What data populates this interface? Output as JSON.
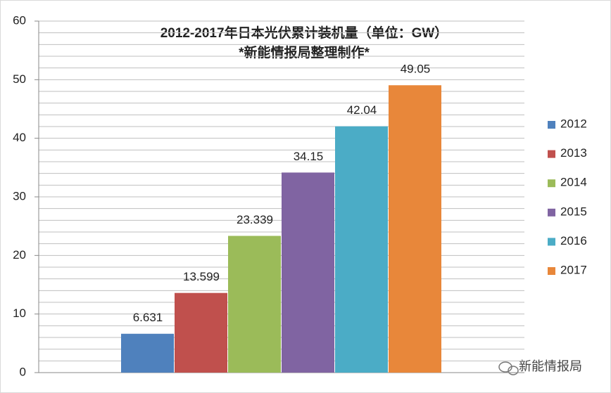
{
  "chart_data": {
    "type": "bar",
    "title": "2012-2017年日本光伏累计装机量（单位：GW）",
    "subtitle": "*新能情报局整理制作*",
    "categories": [
      null
    ],
    "series": [
      {
        "name": "2012",
        "color": "#4f81bd",
        "values": [
          6.631
        ]
      },
      {
        "name": "2013",
        "color": "#c0504d",
        "values": [
          13.599
        ]
      },
      {
        "name": "2014",
        "color": "#9bbb59",
        "values": [
          23.339
        ]
      },
      {
        "name": "2015",
        "color": "#8064a2",
        "values": [
          34.15
        ]
      },
      {
        "name": "2016",
        "color": "#4bacc6",
        "values": [
          42.04
        ]
      },
      {
        "name": "2017",
        "color": "#e8873a",
        "values": [
          49.05
        ]
      }
    ],
    "ylim": [
      0,
      60
    ],
    "yticks": [
      0,
      10,
      20,
      30,
      40,
      50,
      60
    ],
    "minor_yticks": [
      2,
      4,
      6,
      8,
      12,
      14,
      16,
      18,
      22,
      24,
      26,
      28,
      32,
      34,
      36,
      38,
      42,
      44,
      46,
      48,
      52,
      54,
      56,
      58
    ],
    "grid": true,
    "legend": "right",
    "watermark": "新能情报局"
  }
}
